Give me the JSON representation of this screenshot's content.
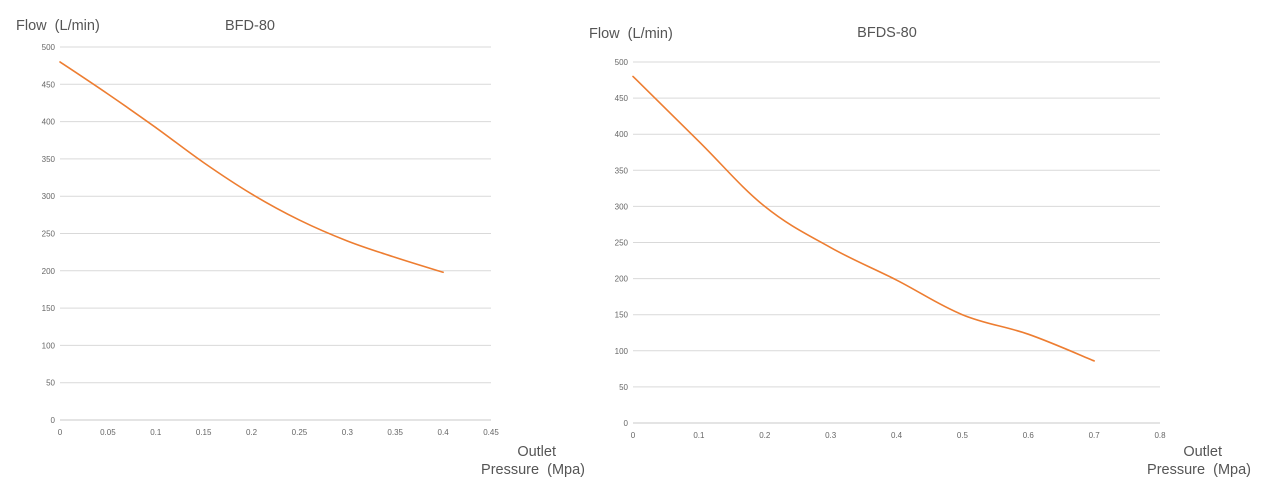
{
  "colors": {
    "line": "#ED7D31",
    "grid": "#D9D9D9",
    "text": "#555555"
  },
  "chart_data": [
    {
      "type": "line",
      "title": "BFD-80",
      "ylabel": "Flow  (L/min)",
      "xlabel_lines": [
        "Outlet",
        "Pressure  (Mpa)"
      ],
      "xlim": [
        0,
        0.45
      ],
      "ylim": [
        0,
        500
      ],
      "x_ticks": [
        "0",
        "0.05",
        "0.1",
        "0.15",
        "0.2",
        "0.25",
        "0.3",
        "0.35",
        "0.4",
        "0.45"
      ],
      "y_ticks": [
        "0",
        "50",
        "100",
        "150",
        "200",
        "250",
        "300",
        "350",
        "400",
        "450",
        "500"
      ],
      "grid": true,
      "series": [
        {
          "x": [
            0,
            0.05,
            0.1,
            0.15,
            0.2,
            0.25,
            0.3,
            0.35,
            0.4
          ],
          "y": [
            480,
            437,
            392,
            345,
            303,
            268,
            240,
            218,
            198
          ]
        }
      ]
    },
    {
      "type": "line",
      "title": "BFDS-80",
      "ylabel": "Flow  (L/min)",
      "xlabel_lines": [
        "Outlet",
        "Pressure  (Mpa)"
      ],
      "xlim": [
        0,
        0.8
      ],
      "ylim": [
        0,
        500
      ],
      "x_ticks": [
        "0",
        "0.1",
        "0.2",
        "0.3",
        "0.4",
        "0.5",
        "0.6",
        "0.7",
        "0.8"
      ],
      "y_ticks": [
        "0",
        "50",
        "100",
        "150",
        "200",
        "250",
        "300",
        "350",
        "400",
        "450",
        "500"
      ],
      "grid": true,
      "series": [
        {
          "x": [
            0,
            0.1,
            0.2,
            0.3,
            0.4,
            0.5,
            0.6,
            0.7
          ],
          "y": [
            480,
            390,
            300,
            243,
            198,
            150,
            123,
            86
          ]
        }
      ]
    }
  ]
}
